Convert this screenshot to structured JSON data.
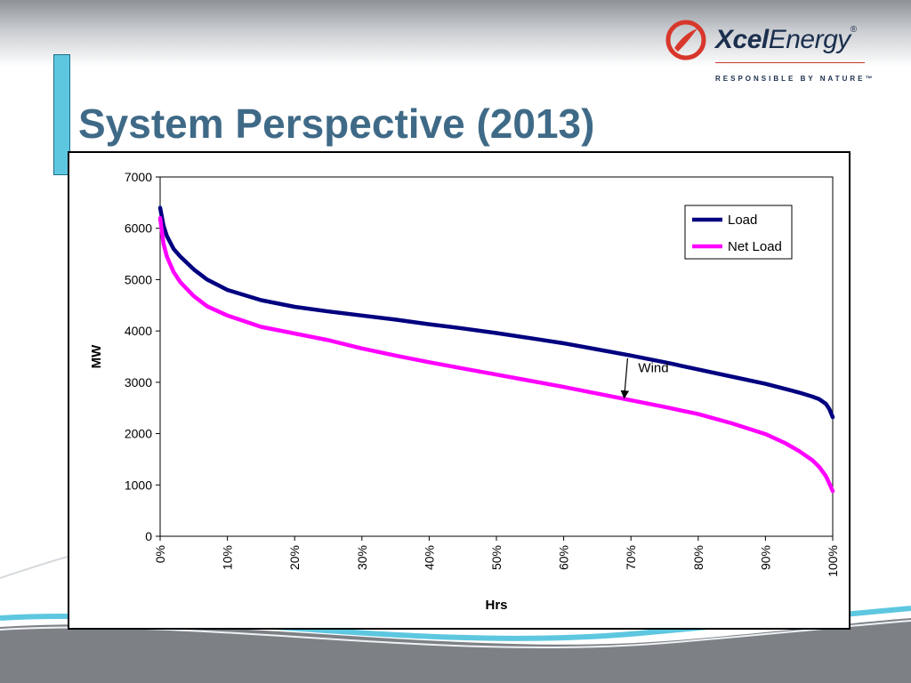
{
  "slide": {
    "title": "System Perspective (2013)",
    "logo": {
      "brand_bold": "Xcel",
      "brand_light": "Energy",
      "registered": "®",
      "tagline": "RESPONSIBLE BY NATURE™",
      "icon": "xcel-swoosh-icon"
    },
    "colors": {
      "title": "#3f6a87",
      "accent_bar": "#5ec7e0",
      "logo_red": "#d8372b",
      "logo_navy": "#1b2f4e"
    }
  },
  "chart_data": {
    "type": "line",
    "title": "",
    "xlabel": "Hrs",
    "ylabel": "MW",
    "xlim": [
      0,
      100
    ],
    "ylim": [
      0,
      7000
    ],
    "x_ticks": [
      0,
      10,
      20,
      30,
      40,
      50,
      60,
      70,
      80,
      90,
      100
    ],
    "x_tick_labels": [
      "0%",
      "10%",
      "20%",
      "30%",
      "40%",
      "50%",
      "60%",
      "70%",
      "80%",
      "90%",
      "100%"
    ],
    "y_ticks": [
      0,
      1000,
      2000,
      3000,
      4000,
      5000,
      6000,
      7000
    ],
    "y_tick_labels": [
      "0",
      "1000",
      "2000",
      "3000",
      "4000",
      "5000",
      "6000",
      "7000"
    ],
    "grid": false,
    "legend_position": "top-right",
    "series": [
      {
        "name": "Load",
        "color": "#000080",
        "x": [
          0,
          0.5,
          1,
          2,
          3,
          5,
          7,
          10,
          15,
          20,
          25,
          30,
          35,
          40,
          45,
          50,
          55,
          60,
          65,
          70,
          75,
          80,
          85,
          90,
          93,
          95,
          97,
          98,
          99,
          99.5,
          100
        ],
        "y": [
          6400,
          6050,
          5850,
          5600,
          5450,
          5200,
          5000,
          4800,
          4600,
          4470,
          4380,
          4300,
          4220,
          4130,
          4050,
          3960,
          3860,
          3760,
          3640,
          3520,
          3390,
          3250,
          3110,
          2970,
          2870,
          2800,
          2720,
          2670,
          2580,
          2480,
          2320
        ]
      },
      {
        "name": "Net Load",
        "color": "#ff00ff",
        "x": [
          0,
          0.5,
          1,
          2,
          3,
          5,
          7,
          10,
          15,
          20,
          25,
          30,
          35,
          40,
          45,
          50,
          55,
          60,
          65,
          70,
          75,
          80,
          85,
          90,
          93,
          95,
          97,
          98,
          99,
          99.5,
          100
        ],
        "y": [
          6200,
          5700,
          5450,
          5150,
          4950,
          4680,
          4480,
          4300,
          4080,
          3950,
          3820,
          3660,
          3520,
          3390,
          3270,
          3150,
          3030,
          2910,
          2780,
          2650,
          2520,
          2380,
          2200,
          1990,
          1810,
          1660,
          1480,
          1350,
          1170,
          1030,
          880
        ]
      }
    ],
    "annotations": [
      {
        "text": "Wind",
        "arrow_from": [
          69.5,
          3520
        ],
        "arrow_to": [
          69,
          2660
        ]
      }
    ]
  }
}
